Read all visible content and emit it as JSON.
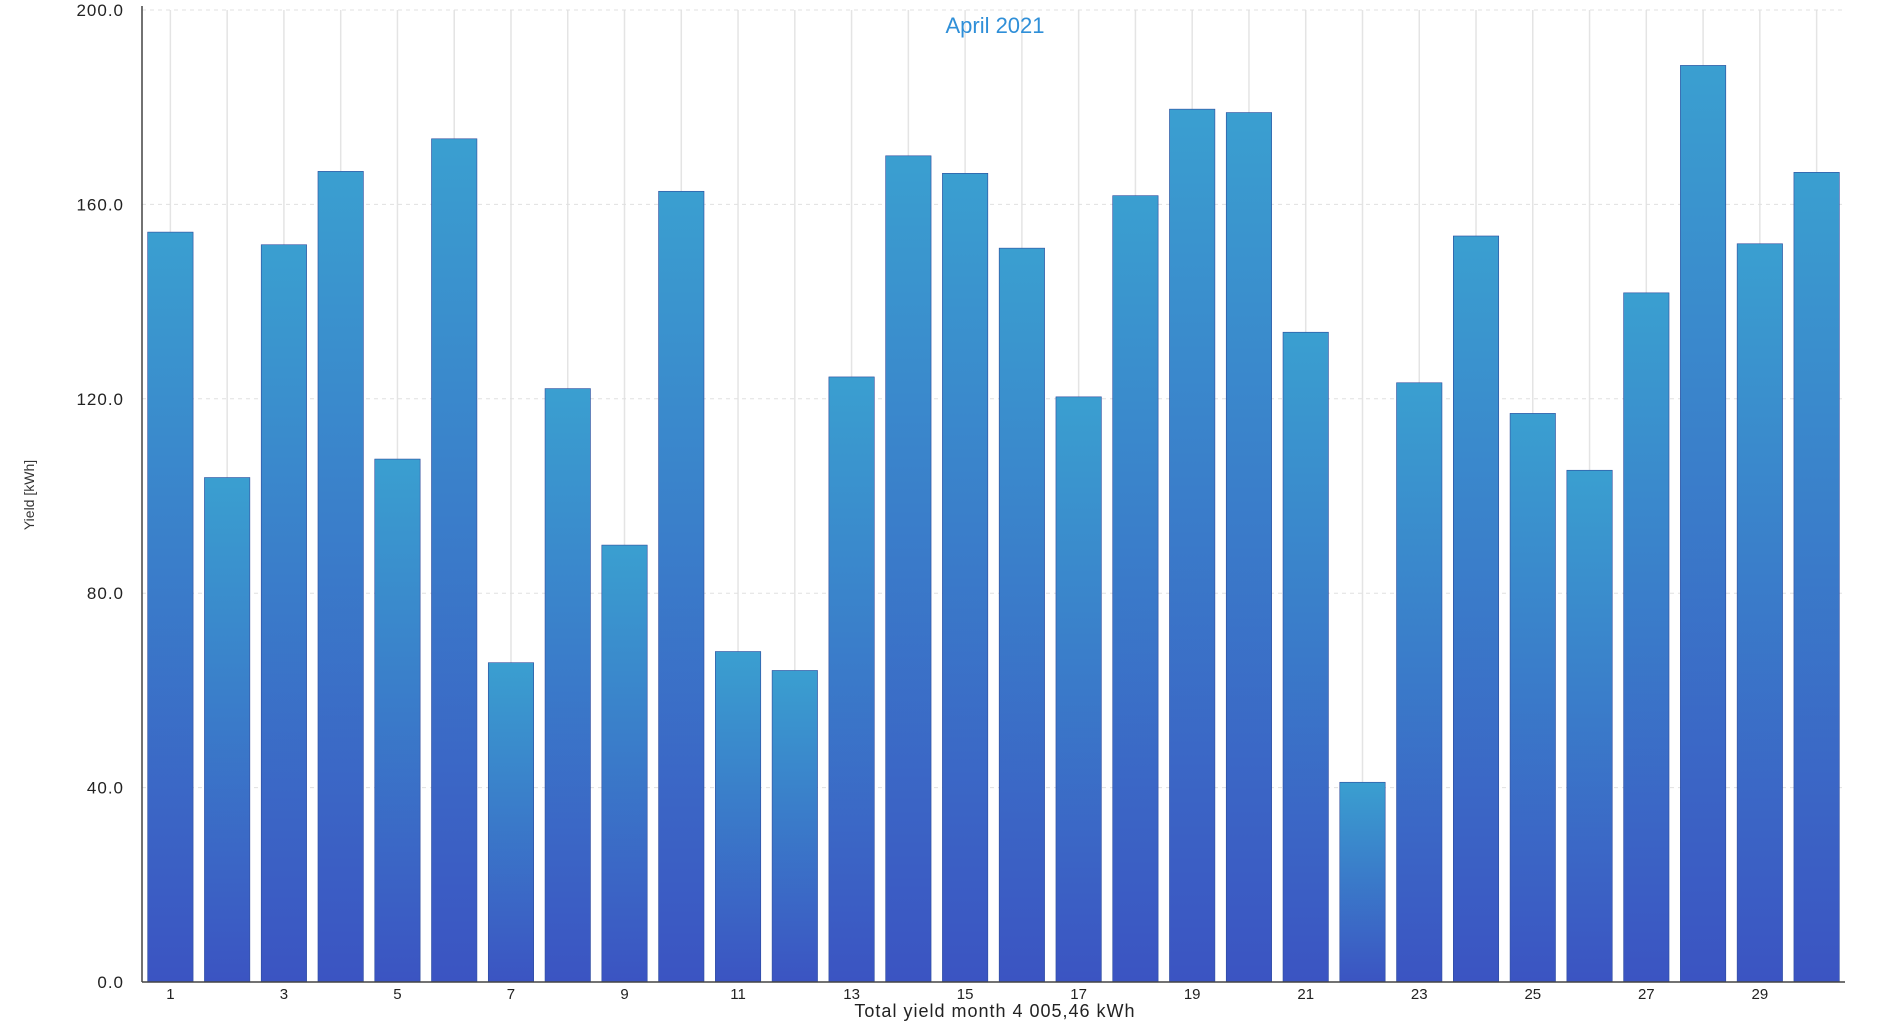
{
  "chart_data": {
    "type": "bar",
    "title": "April 2021",
    "ylabel": "Yield [kWh]",
    "xlabel": "Total yield month 4 005,46 kWh",
    "ylim": [
      0,
      200
    ],
    "y_ticks": [
      "0.0",
      "40.0",
      "80.0",
      "120.0",
      "160.0",
      "200.0"
    ],
    "x_tick_labels": [
      "1",
      "3",
      "5",
      "7",
      "9",
      "11",
      "13",
      "15",
      "17",
      "19",
      "21",
      "23",
      "25",
      "27",
      "29"
    ],
    "categories": [
      "1",
      "2",
      "3",
      "4",
      "5",
      "6",
      "7",
      "8",
      "9",
      "10",
      "11",
      "12",
      "13",
      "14",
      "15",
      "16",
      "17",
      "18",
      "19",
      "20",
      "21",
      "22",
      "23",
      "24",
      "25",
      "26",
      "27",
      "28",
      "29",
      "30"
    ],
    "values": [
      154.3,
      103.8,
      151.7,
      166.8,
      107.6,
      173.5,
      65.7,
      122.1,
      89.9,
      162.7,
      68.0,
      64.1,
      124.5,
      170.0,
      166.4,
      151.0,
      120.4,
      161.8,
      179.6,
      178.9,
      133.7,
      41.1,
      123.3,
      153.5,
      117.0,
      105.3,
      141.8,
      188.6,
      151.9,
      166.6
    ],
    "grid": true,
    "colors": {
      "bar_top": "#3a9fd0",
      "bar_bottom": "#3b54c2",
      "title": "#2f8fd8",
      "grid": "#e4e4e4",
      "axis": "#444444"
    }
  }
}
